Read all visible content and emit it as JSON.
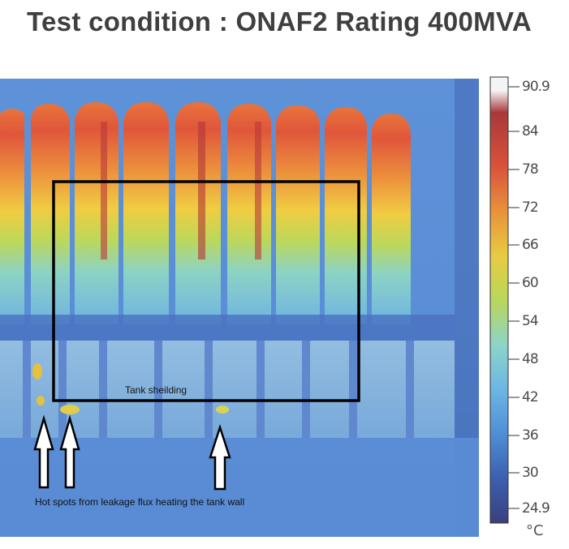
{
  "title": "Test condition : ONAF2 Rating 400MVA",
  "color_scale": {
    "ticks": [
      "90.9",
      "84",
      "78",
      "72",
      "66",
      "60",
      "54",
      "48",
      "42",
      "36",
      "30",
      "24.9"
    ],
    "unit": "°C",
    "colors": [
      "#ffffff",
      "#b03a35",
      "#d9523a",
      "#e8913c",
      "#e6c73f",
      "#b8d65a",
      "#8fd4c6",
      "#69b5e3",
      "#4f8fd6",
      "#3e6fc3",
      "#3c56a6",
      "#3c3f7c"
    ]
  },
  "annotations": {
    "tank_shielding": "Tank sheilding",
    "hot_spots": "Hot spots from leakage flux heating the tank wall"
  }
}
